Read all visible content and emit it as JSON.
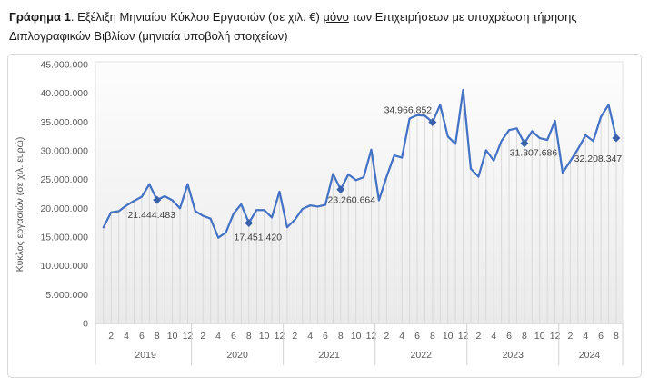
{
  "page": {
    "title": {
      "prefix_bold": "Γράφημα 1",
      "before_underline": ". Εξέλιξη Μηνιαίου Κύκλου Εργασιών (σε χιλ. €) ",
      "underlined": "μόνο",
      "after_underline": " των Επιχειρήσεων με υποχρέωση τήρησης Διπλογραφικών Βιβλίων (μηνιαία υποβολή στοιχείων)"
    }
  },
  "chart_data": {
    "type": "line",
    "title": "",
    "xlabel": "",
    "ylabel": "Κύκλος εργασιών (σε χιλ. ευρώ)",
    "ylim": [
      0,
      45000000
    ],
    "ytick_step": 5000000,
    "ytick_labels": [
      "0",
      "5.000.000",
      "10.000.000",
      "15.000.000",
      "20.000.000",
      "25.000.000",
      "30.000.000",
      "35.000.000",
      "40.000.000",
      "45.000.000"
    ],
    "grid": "vertical-drop-lines-per-month",
    "legend_position": "none",
    "line_color": "#4472C4",
    "marker_color": "#3A62AC",
    "dropline_color": "#D9D9D9",
    "axis_text_color": "#595959",
    "data_label_color": "#404040",
    "month_ticks_shown": [
      "2",
      "4",
      "6",
      "8",
      "10",
      "12"
    ],
    "series": [
      {
        "name": "Κύκλος εργασιών",
        "years": [
          {
            "year": "2019",
            "values": [
              16700000,
              19300000,
              19500000,
              20500000,
              21300000,
              22000000,
              24200000,
              21444483,
              22100000,
              21400000,
              20000000,
              24200000
            ]
          },
          {
            "year": "2020",
            "values": [
              19500000,
              18700000,
              18200000,
              14900000,
              15800000,
              19100000,
              20700000,
              17451420,
              19700000,
              19700000,
              18400000,
              22900000
            ]
          },
          {
            "year": "2021",
            "values": [
              16700000,
              18000000,
              19900000,
              20500000,
              20300000,
              20600000,
              26000000,
              23260664,
              25900000,
              24900000,
              25400000,
              30200000
            ]
          },
          {
            "year": "2022",
            "values": [
              21400000,
              25500000,
              29200000,
              28800000,
              35600000,
              36200000,
              36100000,
              34966852,
              38000000,
              32500000,
              31200000,
              40600000
            ]
          },
          {
            "year": "2023",
            "values": [
              26900000,
              25500000,
              30100000,
              28300000,
              31700000,
              33600000,
              33900000,
              31307686,
              33400000,
              32200000,
              31900000,
              35200000
            ]
          },
          {
            "year": "2024",
            "values": [
              26200000,
              28200000,
              30300000,
              32700000,
              31700000,
              35900000,
              38000000,
              32208347
            ]
          }
        ]
      }
    ],
    "labeled_points": [
      {
        "year": "2019",
        "month": 8,
        "value": 21444483,
        "label": "21.444.483"
      },
      {
        "year": "2020",
        "month": 8,
        "value": 17451420,
        "label": "17.451.420"
      },
      {
        "year": "2021",
        "month": 8,
        "value": 23260664,
        "label": "23.260.664"
      },
      {
        "year": "2022",
        "month": 8,
        "value": 34966852,
        "label": "34.966.852"
      },
      {
        "year": "2023",
        "month": 8,
        "value": 31307686,
        "label": "31.307.686"
      },
      {
        "year": "2024",
        "month": 8,
        "value": 32208347,
        "label": "32.208.347"
      }
    ]
  }
}
